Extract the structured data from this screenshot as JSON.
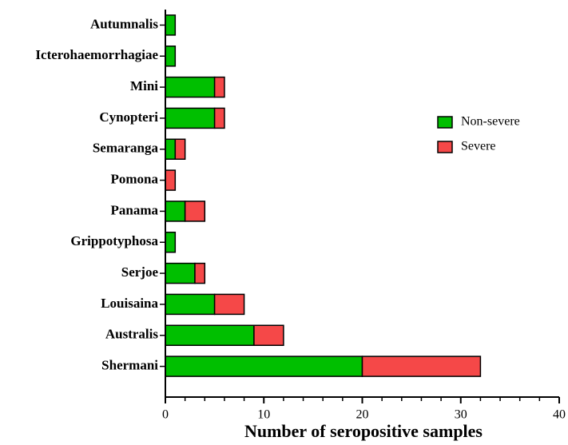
{
  "chart_data": {
    "type": "stacked-barh",
    "x_label": "Number of seropositive samples",
    "categories": [
      "Autumnalis",
      "Icterohaemorrhagiae",
      "Mini",
      "Cynopteri",
      "Semaranga",
      "Pomona",
      "Panama",
      "Grippotyphosa",
      "Serjoe",
      "Louisaina",
      "Australis",
      "Shermani"
    ],
    "series": [
      {
        "name": "Non-severe",
        "color": "#00bf00",
        "values": [
          1,
          1,
          5,
          5,
          1,
          0,
          2,
          1,
          3,
          5,
          9,
          20
        ]
      },
      {
        "name": "Severe",
        "color": "#f54848",
        "values": [
          0,
          0,
          1,
          1,
          1,
          1,
          2,
          0,
          1,
          3,
          3,
          12
        ]
      }
    ],
    "xlim": [
      0,
      40
    ],
    "xticks": [
      0,
      10,
      20,
      30,
      40
    ],
    "xminorticks": [
      2,
      4,
      6,
      8,
      12,
      14,
      16,
      18,
      22,
      24,
      26,
      28,
      32,
      34,
      36,
      38
    ],
    "legend": "right"
  }
}
